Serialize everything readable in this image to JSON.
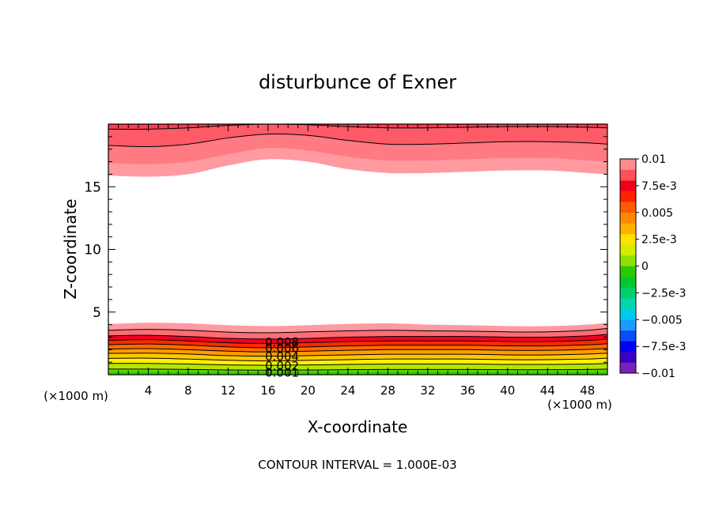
{
  "chart_data": {
    "type": "contour",
    "title": "disturbunce of Exner",
    "xlabel": "X-coordinate",
    "ylabel": "Z-coordinate",
    "x_unit": "(×1000 m)",
    "z_unit": "(×1000 m)",
    "xlim": [
      0,
      50
    ],
    "ylim": [
      0,
      20
    ],
    "x_ticks": [
      4,
      8,
      12,
      16,
      20,
      24,
      28,
      32,
      36,
      40,
      44,
      48
    ],
    "y_ticks": [
      5,
      10,
      15
    ],
    "footer": "CONTOUR INTERVAL = 1.000E-03",
    "contour_interval": 0.001,
    "colorbar": {
      "labels": [
        "0.01",
        "7.5e-3",
        "0.005",
        "2.5e-3",
        "0",
        "−2.5e-3",
        "−0.005",
        "−7.5e-3",
        "−0.01"
      ],
      "range": [
        -0.01,
        0.01
      ],
      "colors": [
        "#7a22b8",
        "#3b00c8",
        "#0000f0",
        "#0a4dff",
        "#1a9cff",
        "#00c8f0",
        "#00d6b0",
        "#00d06c",
        "#00c832",
        "#2ec800",
        "#8ee000",
        "#d4ec00",
        "#ffe000",
        "#ffb000",
        "#ff8a00",
        "#ff5a00",
        "#ff2200",
        "#f00018",
        "#ff4f58",
        "#ff8a90"
      ]
    },
    "bottom_field": {
      "description_values": "fill levels increasing upward from the surface",
      "levels": [
        0.001,
        0.002,
        0.003,
        0.004,
        0.005,
        0.006,
        0.007,
        0.008,
        0.009,
        0.01
      ],
      "labels": [
        {
          "text": "0.001",
          "x": 17.4,
          "z": 0.15
        },
        {
          "text": "0.002",
          "x": 17.4,
          "z": 0.7
        },
        {
          "text": "0.004",
          "x": 17.4,
          "z": 1.45
        },
        {
          "text": "0.006",
          "x": 17.4,
          "z": 2.1
        },
        {
          "text": "0.008",
          "x": 17.4,
          "z": 2.6
        }
      ],
      "x": [
        0,
        4,
        8,
        12,
        16,
        20,
        24,
        28,
        32,
        36,
        40,
        44,
        48,
        50
      ],
      "level_heights": [
        [
          0.45,
          0.45,
          0.42,
          0.38,
          0.36,
          0.38,
          0.4,
          0.42,
          0.42,
          0.42,
          0.4,
          0.4,
          0.42,
          0.45
        ],
        [
          0.9,
          0.9,
          0.85,
          0.78,
          0.75,
          0.78,
          0.82,
          0.85,
          0.85,
          0.85,
          0.82,
          0.82,
          0.85,
          0.9
        ],
        [
          1.3,
          1.32,
          1.25,
          1.15,
          1.1,
          1.15,
          1.2,
          1.25,
          1.25,
          1.25,
          1.2,
          1.2,
          1.25,
          1.32
        ],
        [
          1.7,
          1.72,
          1.65,
          1.52,
          1.48,
          1.52,
          1.58,
          1.63,
          1.63,
          1.63,
          1.58,
          1.58,
          1.65,
          1.72
        ],
        [
          2.05,
          2.08,
          2.0,
          1.88,
          1.82,
          1.88,
          1.95,
          2.0,
          2.0,
          2.0,
          1.95,
          1.95,
          2.02,
          2.1
        ],
        [
          2.4,
          2.45,
          2.36,
          2.22,
          2.15,
          2.22,
          2.3,
          2.35,
          2.35,
          2.35,
          2.3,
          2.3,
          2.38,
          2.48
        ],
        [
          2.75,
          2.8,
          2.7,
          2.55,
          2.5,
          2.56,
          2.65,
          2.7,
          2.7,
          2.7,
          2.65,
          2.65,
          2.74,
          2.85
        ],
        [
          3.1,
          3.15,
          3.05,
          2.9,
          2.85,
          2.9,
          3.0,
          3.05,
          3.05,
          3.05,
          3.0,
          3.0,
          3.1,
          3.22
        ],
        [
          3.55,
          3.62,
          3.55,
          3.4,
          3.35,
          3.42,
          3.5,
          3.55,
          3.5,
          3.48,
          3.42,
          3.42,
          3.55,
          3.7
        ],
        [
          4.05,
          4.15,
          4.1,
          3.95,
          3.88,
          3.95,
          4.05,
          4.1,
          4.0,
          3.95,
          3.88,
          3.88,
          4.0,
          4.15
        ]
      ]
    },
    "top_field": {
      "x": [
        0,
        4,
        8,
        12,
        16,
        20,
        24,
        28,
        32,
        36,
        40,
        44,
        48,
        50
      ],
      "level_heights": [
        [
          15.9,
          15.8,
          16.0,
          16.7,
          17.2,
          17.0,
          16.4,
          16.1,
          16.1,
          16.2,
          16.3,
          16.3,
          16.1,
          16.0
        ],
        [
          16.9,
          16.8,
          17.0,
          17.6,
          18.1,
          17.9,
          17.4,
          17.1,
          17.1,
          17.2,
          17.3,
          17.3,
          17.1,
          17.0
        ],
        [
          18.3,
          18.2,
          18.4,
          18.9,
          19.2,
          19.1,
          18.7,
          18.4,
          18.4,
          18.5,
          18.6,
          18.6,
          18.5,
          18.4
        ],
        [
          19.6,
          19.6,
          19.7,
          19.9,
          20.0,
          19.95,
          19.8,
          19.7,
          19.7,
          19.75,
          19.8,
          19.8,
          19.75,
          19.7
        ]
      ],
      "fill_colors": [
        "#ff9aa0",
        "#ff7a82",
        "#ff5a68",
        "#ff3c52"
      ]
    }
  }
}
